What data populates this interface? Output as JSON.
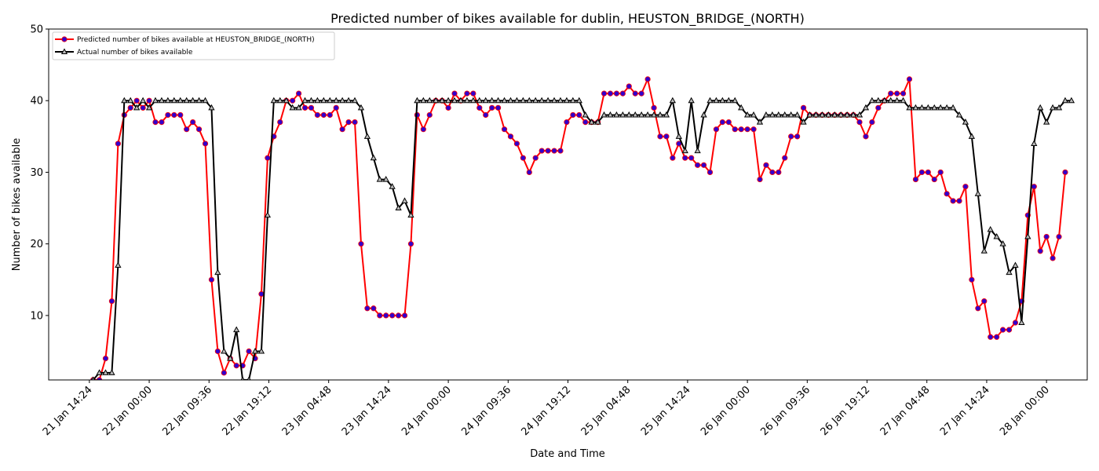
{
  "chart_data": {
    "type": "line",
    "title": "Predicted number of bikes available for dublin, HEUSTON_BRIDGE_(NORTH)",
    "xlabel": "Date and Time",
    "ylabel": "Number of bikes available",
    "ylim": [
      1,
      50
    ],
    "yticks": [
      10,
      20,
      30,
      40,
      50
    ],
    "xlim": [
      "21 Jan 07:52",
      "28 Jan 06:32"
    ],
    "xticks": [
      "21 Jan 14:24",
      "22 Jan 00:00",
      "22 Jan 09:36",
      "22 Jan 19:12",
      "23 Jan 04:48",
      "23 Jan 14:24",
      "24 Jan 00:00",
      "24 Jan 09:36",
      "24 Jan 19:12",
      "25 Jan 04:48",
      "25 Jan 14:24",
      "26 Jan 00:00",
      "26 Jan 09:36",
      "26 Jan 19:12",
      "27 Jan 04:48",
      "27 Jan 14:24",
      "28 Jan 00:00"
    ],
    "grid": false,
    "legend_position": "top-left",
    "x_start": "21 Jan 12:00",
    "x_step": "1 hour",
    "series": [
      {
        "name": "Predicted number of bikes available at HEUSTON_BRIDGE_(NORTH)",
        "color": "#ff0000",
        "marker_fill": "#3300cc",
        "marker": "circle",
        "values": [
          -2,
          0,
          0,
          1,
          1,
          4,
          12,
          34,
          38,
          39,
          40,
          39,
          40,
          37,
          37,
          38,
          38,
          38,
          36,
          37,
          36,
          34,
          15,
          5,
          2,
          4,
          3,
          3,
          5,
          4,
          13,
          32,
          35,
          37,
          40,
          40,
          41,
          39,
          39,
          38,
          38,
          38,
          39,
          36,
          37,
          37,
          20,
          11,
          11,
          10,
          10,
          10,
          10,
          10,
          20,
          38,
          36,
          38,
          40,
          40,
          39,
          41,
          40,
          41,
          41,
          39,
          38,
          39,
          39,
          36,
          35,
          34,
          32,
          30,
          32,
          33,
          33,
          33,
          33,
          37,
          38,
          38,
          37,
          37,
          37,
          41,
          41,
          41,
          41,
          42,
          41,
          41,
          43,
          39,
          35,
          35,
          32,
          34,
          32,
          32,
          31,
          31,
          30,
          36,
          37,
          37,
          36,
          36,
          36,
          36,
          29,
          31,
          30,
          30,
          32,
          35,
          35,
          39,
          38,
          38,
          38,
          38,
          38,
          38,
          38,
          38,
          37,
          35,
          37,
          39,
          40,
          41,
          41,
          41,
          43,
          29,
          30,
          30,
          29,
          30,
          27,
          26,
          26,
          28,
          15,
          11,
          12,
          7,
          7,
          8,
          8,
          9,
          12,
          24,
          28,
          19,
          21,
          18,
          21,
          30
        ]
      },
      {
        "name": "Actual number of bikes available",
        "color": "#000000",
        "marker_fill": "#bbbbbb",
        "marker": "triangle",
        "values": [
          -2,
          0,
          0,
          1,
          2,
          2,
          2,
          17,
          40,
          40,
          39,
          40,
          39,
          40,
          40,
          40,
          40,
          40,
          40,
          40,
          40,
          40,
          39,
          16,
          5,
          4,
          8,
          1,
          1,
          5,
          5,
          24,
          40,
          40,
          40,
          39,
          39,
          40,
          40,
          40,
          40,
          40,
          40,
          40,
          40,
          40,
          39,
          35,
          32,
          29,
          29,
          28,
          25,
          26,
          24,
          40,
          40,
          40,
          40,
          40,
          40,
          40,
          40,
          40,
          40,
          40,
          40,
          40,
          40,
          40,
          40,
          40,
          40,
          40,
          40,
          40,
          40,
          40,
          40,
          40,
          40,
          40,
          38,
          37,
          37,
          38,
          38,
          38,
          38,
          38,
          38,
          38,
          38,
          38,
          38,
          38,
          40,
          35,
          33,
          40,
          33,
          38,
          40,
          40,
          40,
          40,
          40,
          39,
          38,
          38,
          37,
          38,
          38,
          38,
          38,
          38,
          38,
          37,
          38,
          38,
          38,
          38,
          38,
          38,
          38,
          38,
          38,
          39,
          40,
          40,
          40,
          40,
          40,
          40,
          39,
          39,
          39,
          39,
          39,
          39,
          39,
          39,
          38,
          37,
          35,
          27,
          19,
          22,
          21,
          20,
          16,
          17,
          9,
          21,
          34,
          39,
          37,
          39,
          39,
          40,
          40
        ]
      }
    ]
  }
}
